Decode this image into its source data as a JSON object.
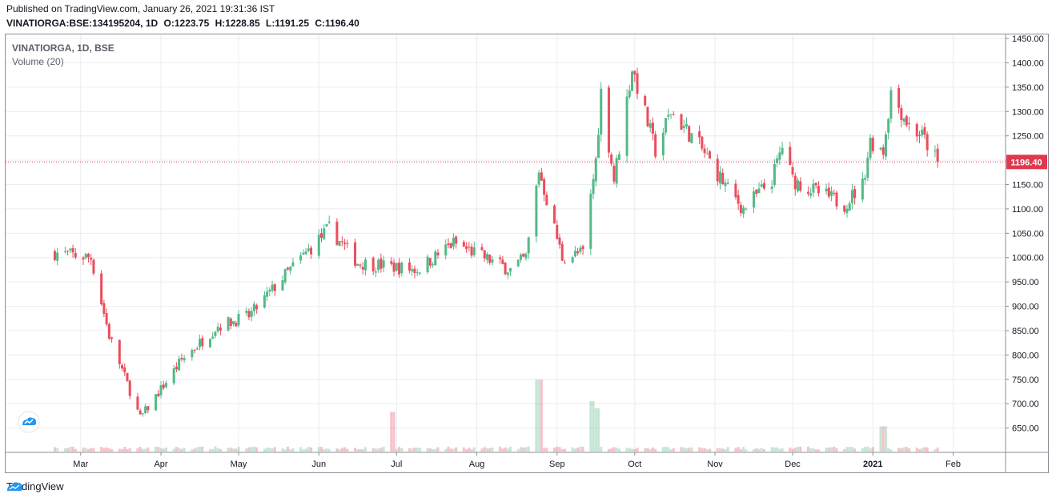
{
  "header": {
    "published": "Published on TradingView.com, January 26, 2021 19:31:36 IST",
    "symbol": "VINATIORGA:BSE:134195204, 1D",
    "o": "O:1223.75",
    "h": "H:1228.85",
    "l": "L:1191.25",
    "c": "C:1196.40"
  },
  "legend": {
    "series": "VINATIORGA, 1D, BSE",
    "volume": "Volume (20)"
  },
  "footer": {
    "brand": "TradingView"
  },
  "colors": {
    "up": "#26a69a",
    "up_candle": "#53b987",
    "down": "#eb4d5c",
    "grid": "#e9ecf0",
    "last_price_line": "#e0394f"
  },
  "chart_data": {
    "type": "candlestick",
    "price_axis": {
      "ticks": [
        "650.00",
        "700.00",
        "750.00",
        "800.00",
        "850.00",
        "900.00",
        "950.00",
        "1000.00",
        "1050.00",
        "1100.00",
        "1150.00",
        "1200.00",
        "1250.00",
        "1300.00",
        "1350.00",
        "1400.00",
        "1450.00"
      ],
      "ylim": [
        605,
        1455
      ]
    },
    "time_axis": {
      "labels": [
        "Mar",
        "Apr",
        "May",
        "Jun",
        "Jul",
        "Aug",
        "Sep",
        "Oct",
        "Nov",
        "Dec",
        "2021",
        "Feb"
      ]
    },
    "last_price": "1196.40",
    "grid": true,
    "keypoints": [
      {
        "date": "2020-02-20",
        "close": 1010
      },
      {
        "date": "2020-03-05",
        "close": 1000
      },
      {
        "date": "2020-03-12",
        "close": 840
      },
      {
        "date": "2020-03-24",
        "close": 670
      },
      {
        "date": "2020-04-09",
        "close": 790
      },
      {
        "date": "2020-04-23",
        "close": 860
      },
      {
        "date": "2020-05-05",
        "close": 880
      },
      {
        "date": "2020-05-20",
        "close": 970
      },
      {
        "date": "2020-06-05",
        "close": 1060
      },
      {
        "date": "2020-06-16",
        "close": 990
      },
      {
        "date": "2020-07-09",
        "close": 975
      },
      {
        "date": "2020-07-23",
        "close": 1030
      },
      {
        "date": "2020-08-14",
        "close": 975
      },
      {
        "date": "2020-08-20",
        "close": 1000
      },
      {
        "date": "2020-08-25",
        "close": 1180
      },
      {
        "date": "2020-09-03",
        "close": 1000
      },
      {
        "date": "2020-09-11",
        "close": 1010
      },
      {
        "date": "2020-09-16",
        "close": 1200
      },
      {
        "date": "2020-09-18",
        "close": 1340
      },
      {
        "date": "2020-09-23",
        "close": 1160
      },
      {
        "date": "2020-09-30",
        "close": 1390
      },
      {
        "date": "2020-10-09",
        "close": 1220
      },
      {
        "date": "2020-10-15",
        "close": 1300
      },
      {
        "date": "2020-10-26",
        "close": 1230
      },
      {
        "date": "2020-11-06",
        "close": 1140
      },
      {
        "date": "2020-11-12",
        "close": 1100
      },
      {
        "date": "2020-11-23",
        "close": 1160
      },
      {
        "date": "2020-11-27",
        "close": 1230
      },
      {
        "date": "2020-12-01",
        "close": 1160
      },
      {
        "date": "2020-12-08",
        "close": 1140
      },
      {
        "date": "2020-12-21",
        "close": 1110
      },
      {
        "date": "2020-12-28",
        "close": 1150
      },
      {
        "date": "2020-12-31",
        "close": 1240
      },
      {
        "date": "2021-01-05",
        "close": 1220
      },
      {
        "date": "2021-01-08",
        "close": 1340
      },
      {
        "date": "2021-01-15",
        "close": 1270
      },
      {
        "date": "2021-01-20",
        "close": 1250
      },
      {
        "date": "2021-01-26",
        "close": 1196.4
      }
    ],
    "volume_spikes": [
      {
        "date": "2020-06-29",
        "volume_rel": 0.55
      },
      {
        "date": "2020-08-25",
        "volume_rel": 1.0
      },
      {
        "date": "2020-09-14",
        "volume_rel": 0.7
      },
      {
        "date": "2020-09-16",
        "volume_rel": 0.6
      },
      {
        "date": "2021-01-05",
        "volume_rel": 0.35
      }
    ]
  }
}
